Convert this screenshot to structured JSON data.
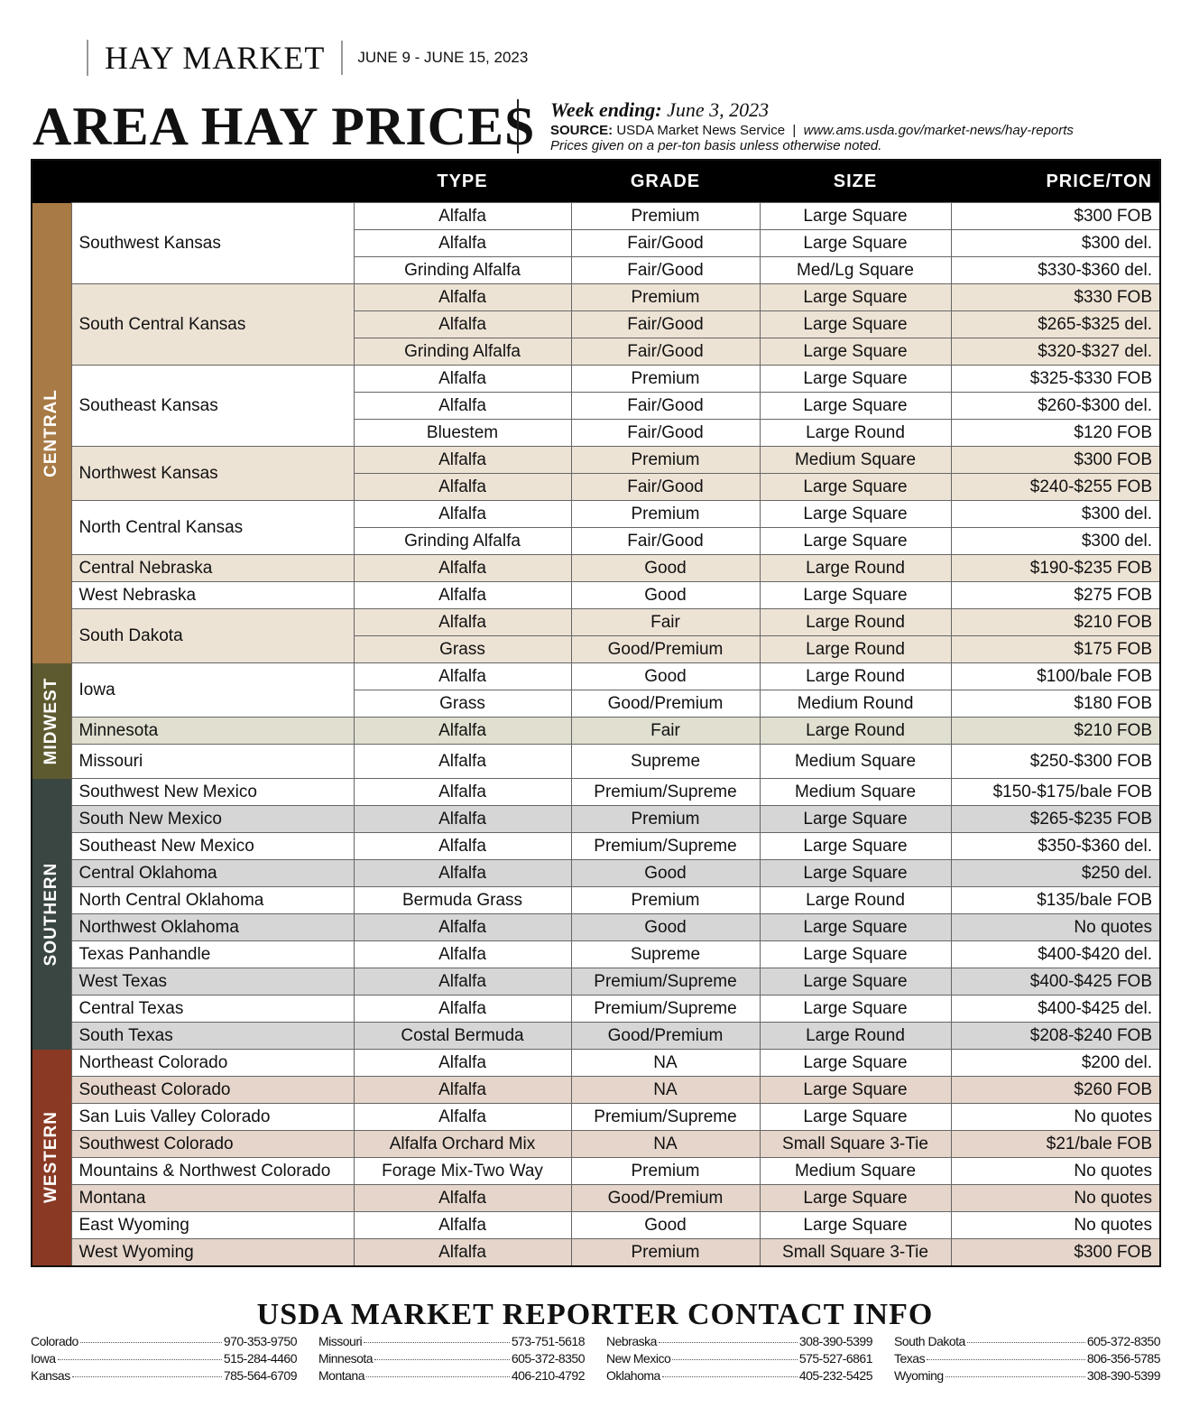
{
  "masthead": {
    "section": "HAY MARKET",
    "dates": "JUNE 9 - JUNE 15, 2023"
  },
  "header": {
    "title": "AREA HAY PRICES",
    "week_label": "Week ending:",
    "week_value": "June 3, 2023",
    "source_label": "SOURCE:",
    "source_value": "USDA Market News Service",
    "source_url": "www.ams.usda.gov/market-news/hay-reports",
    "note": "Prices given on a per-ton basis unless otherwise noted."
  },
  "table": {
    "columns": [
      "TYPE",
      "GRADE",
      "SIZE",
      "PRICE/TON"
    ],
    "regions": [
      {
        "name": "CENTRAL",
        "color": "#a87a45",
        "tint": "#ede3d5",
        "areas": [
          {
            "area": "Southwest Kansas",
            "rows": [
              [
                "Alfalfa",
                "Premium",
                "Large Square",
                "$300 FOB"
              ],
              [
                "Alfalfa",
                "Fair/Good",
                "Large Square",
                "$300 del."
              ],
              [
                "Grinding Alfalfa",
                "Fair/Good",
                "Med/Lg Square",
                "$330-$360 del."
              ]
            ]
          },
          {
            "area": "South Central Kansas",
            "rows": [
              [
                "Alfalfa",
                "Premium",
                "Large Square",
                "$330 FOB"
              ],
              [
                "Alfalfa",
                "Fair/Good",
                "Large Square",
                "$265-$325 del."
              ],
              [
                "Grinding Alfalfa",
                "Fair/Good",
                "Large Square",
                "$320-$327 del."
              ]
            ]
          },
          {
            "area": "Southeast Kansas",
            "rows": [
              [
                "Alfalfa",
                "Premium",
                "Large Square",
                "$325-$330 FOB"
              ],
              [
                "Alfalfa",
                "Fair/Good",
                "Large Square",
                "$260-$300 del."
              ],
              [
                "Bluestem",
                "Fair/Good",
                "Large Round",
                "$120 FOB"
              ]
            ]
          },
          {
            "area": "Northwest Kansas",
            "rows": [
              [
                "Alfalfa",
                "Premium",
                "Medium Square",
                "$300 FOB"
              ],
              [
                "Alfalfa",
                "Fair/Good",
                "Large Square",
                "$240-$255 FOB"
              ]
            ]
          },
          {
            "area": "North Central Kansas",
            "rows": [
              [
                "Alfalfa",
                "Premium",
                "Large Square",
                "$300 del."
              ],
              [
                "Grinding Alfalfa",
                "Fair/Good",
                "Large Square",
                "$300 del."
              ]
            ]
          },
          {
            "area": "Central Nebraska",
            "rows": [
              [
                "Alfalfa",
                "Good",
                "Large Round",
                "$190-$235 FOB"
              ]
            ]
          },
          {
            "area": "West Nebraska",
            "rows": [
              [
                "Alfalfa",
                "Good",
                "Large Square",
                "$275 FOB"
              ]
            ]
          },
          {
            "area": "South Dakota",
            "rows": [
              [
                "Alfalfa",
                "Fair",
                "Large Round",
                "$210 FOB"
              ],
              [
                "Grass",
                "Good/Premium",
                "Large Round",
                "$175 FOB"
              ]
            ]
          }
        ]
      },
      {
        "name": "MIDWEST",
        "color": "#5e5a30",
        "tint": "#e0dfd0",
        "areas": [
          {
            "area": "Iowa",
            "rows": [
              [
                "Alfalfa",
                "Good",
                "Large Round",
                "$100/bale  FOB"
              ],
              [
                "Grass",
                "Good/Premium",
                "Medium Round",
                "$180 FOB"
              ]
            ]
          },
          {
            "area": "Minnesota",
            "rows": [
              [
                "Alfalfa",
                "Fair",
                "Large Round",
                "$210 FOB"
              ]
            ]
          },
          {
            "area": "Missouri",
            "rows": [
              [
                "Alfalfa",
                "Supreme",
                "Medium Square",
                "$250-$300 FOB"
              ]
            ]
          }
        ]
      },
      {
        "name": "SOUTHERN",
        "color": "#3a4641",
        "tint": "#d6d6d6",
        "areas": [
          {
            "area": "Southwest New Mexico",
            "rows": [
              [
                "Alfalfa",
                "Premium/Supreme",
                "Medium Square",
                "$150-$175/bale FOB"
              ]
            ]
          },
          {
            "area": "South New Mexico",
            "rows": [
              [
                "Alfalfa",
                "Premium",
                "Large Square",
                "$265-$235 FOB"
              ]
            ]
          },
          {
            "area": "Southeast New Mexico",
            "rows": [
              [
                "Alfalfa",
                "Premium/Supreme",
                "Large Square",
                "$350-$360 del."
              ]
            ]
          },
          {
            "area": "Central Oklahoma",
            "rows": [
              [
                "Alfalfa",
                "Good",
                "Large Square",
                "$250 del."
              ]
            ]
          },
          {
            "area": "North Central Oklahoma",
            "rows": [
              [
                "Bermuda Grass",
                "Premium",
                "Large Round",
                "$135/bale FOB"
              ]
            ]
          },
          {
            "area": "Northwest Oklahoma",
            "rows": [
              [
                "Alfalfa",
                "Good",
                "Large Square",
                "No quotes"
              ]
            ]
          },
          {
            "area": "Texas Panhandle",
            "rows": [
              [
                "Alfalfa",
                "Supreme",
                "Large Square",
                "$400-$420 del."
              ]
            ]
          },
          {
            "area": "West Texas",
            "rows": [
              [
                "Alfalfa",
                "Premium/Supreme",
                "Large Square",
                "$400-$425 FOB"
              ]
            ]
          },
          {
            "area": "Central Texas",
            "rows": [
              [
                "Alfalfa",
                "Premium/Supreme",
                "Large Square",
                "$400-$425 del."
              ]
            ]
          },
          {
            "area": "South Texas",
            "rows": [
              [
                "Costal Bermuda",
                "Good/Premium",
                "Large Round",
                "$208-$240 FOB"
              ]
            ]
          }
        ]
      },
      {
        "name": "WESTERN",
        "color": "#8a3a24",
        "tint": "#e5d5ca",
        "areas": [
          {
            "area": "Northeast Colorado",
            "rows": [
              [
                "Alfalfa",
                "NA",
                "Large Square",
                "$200 del."
              ]
            ]
          },
          {
            "area": "Southeast Colorado",
            "rows": [
              [
                "Alfalfa",
                "NA",
                "Large Square",
                "$260 FOB"
              ]
            ]
          },
          {
            "area": "San Luis Valley Colorado",
            "rows": [
              [
                "Alfalfa",
                "Premium/Supreme",
                "Large Square",
                "No quotes"
              ]
            ]
          },
          {
            "area": "Southwest Colorado",
            "rows": [
              [
                "Alfalfa Orchard Mix",
                "NA",
                "Small Square 3-Tie",
                "$21/bale FOB"
              ]
            ]
          },
          {
            "area": "Mountains & Northwest Colorado",
            "rows": [
              [
                "Forage Mix-Two Way",
                "Premium",
                "Medium Square",
                "No quotes"
              ]
            ]
          },
          {
            "area": "Montana",
            "rows": [
              [
                "Alfalfa",
                "Good/Premium",
                "Large Square",
                "No quotes"
              ]
            ]
          },
          {
            "area": "East Wyoming",
            "rows": [
              [
                "Alfalfa",
                "Good",
                "Large Square",
                "No quotes"
              ]
            ]
          },
          {
            "area": "West Wyoming",
            "rows": [
              [
                "Alfalfa",
                "Premium",
                "Small Square 3-Tie",
                "$300 FOB"
              ]
            ]
          }
        ]
      }
    ]
  },
  "footer": {
    "title": "USDA MARKET REPORTER CONTACT INFO",
    "contacts": [
      {
        "state": "Colorado",
        "phone": "970-353-9750"
      },
      {
        "state": "Missouri",
        "phone": "573-751-5618"
      },
      {
        "state": "Nebraska",
        "phone": "308-390-5399"
      },
      {
        "state": "South Dakota",
        "phone": "605-372-8350"
      },
      {
        "state": "Iowa",
        "phone": "515-284-4460"
      },
      {
        "state": "Minnesota",
        "phone": "605-372-8350"
      },
      {
        "state": "New Mexico",
        "phone": "575-527-6861"
      },
      {
        "state": "Texas",
        "phone": "806-356-5785"
      },
      {
        "state": "Kansas",
        "phone": "785-564-6709"
      },
      {
        "state": "Montana",
        "phone": "406-210-4792"
      },
      {
        "state": "Oklahoma",
        "phone": "405-232-5425"
      },
      {
        "state": "Wyoming",
        "phone": "308-390-5399"
      }
    ]
  }
}
